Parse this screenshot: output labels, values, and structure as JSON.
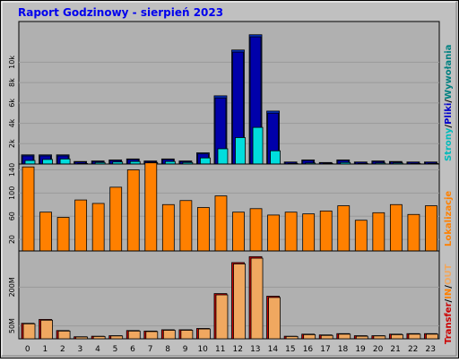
{
  "chart_data": [
    {
      "panel": "hits",
      "type": "bar",
      "title": "Raport Godzinowy -   sierpień 2023",
      "categories": [
        "0",
        "1",
        "2",
        "3",
        "4",
        "5",
        "6",
        "7",
        "8",
        "9",
        "10",
        "11",
        "12",
        "13",
        "14",
        "15",
        "16",
        "17",
        "18",
        "19",
        "20",
        "21",
        "22",
        "23"
      ],
      "ylim": [
        0,
        14000
      ],
      "yticks": [
        "2k",
        "4k",
        "6k",
        "8k",
        "10k"
      ],
      "ytick_values": [
        2000,
        4000,
        6000,
        8000,
        10000
      ],
      "grid": true,
      "series": [
        {
          "name": "Wywołania",
          "color": "#0033cc",
          "values": [
            900,
            900,
            900,
            250,
            300,
            400,
            500,
            300,
            500,
            300,
            1100,
            6700,
            11200,
            12700,
            5200,
            200,
            400,
            150,
            400,
            200,
            300,
            250,
            200,
            200
          ]
        },
        {
          "name": "Pliki",
          "color": "#0000aa",
          "values": [
            800,
            800,
            800,
            200,
            250,
            350,
            450,
            250,
            450,
            250,
            1000,
            6500,
            11000,
            12500,
            5000,
            180,
            350,
            130,
            350,
            180,
            250,
            200,
            180,
            180
          ]
        },
        {
          "name": "Strony",
          "color": "#00dddd",
          "values": [
            350,
            450,
            500,
            50,
            150,
            200,
            250,
            150,
            250,
            150,
            600,
            1500,
            2600,
            3600,
            1300,
            50,
            100,
            50,
            150,
            50,
            100,
            100,
            50,
            50
          ]
        }
      ],
      "legend": {
        "label_strony": "Strony",
        "label_pliki": "Pliki",
        "label_wywolania": "Wywołania",
        "sep1": "/",
        "sep2": "/"
      },
      "legend_placement": "right"
    },
    {
      "panel": "visits",
      "type": "bar",
      "categories": [
        "0",
        "1",
        "2",
        "3",
        "4",
        "5",
        "6",
        "7",
        "8",
        "9",
        "10",
        "11",
        "12",
        "13",
        "14",
        "15",
        "16",
        "17",
        "18",
        "19",
        "20",
        "21",
        "22",
        "23"
      ],
      "ylim": [
        0,
        150
      ],
      "yticks": [
        "20",
        "60",
        "100",
        "140"
      ],
      "ytick_values": [
        20,
        60,
        100,
        140
      ],
      "grid": true,
      "series": [
        {
          "name": "Lokalizacje",
          "color": "#ff8000",
          "values": [
            145,
            67,
            58,
            88,
            82,
            110,
            140,
            152,
            80,
            87,
            75,
            95,
            67,
            73,
            62,
            67,
            64,
            69,
            78,
            53,
            66,
            80,
            63,
            78
          ]
        }
      ],
      "legend": {
        "label": "Lokalizacje"
      },
      "legend_placement": "right"
    },
    {
      "panel": "transfer",
      "type": "bar",
      "ylim": [
        0,
        340
      ],
      "yticks": [
        "50M",
        "200M"
      ],
      "ytick_values": [
        50,
        200
      ],
      "grid": true,
      "categories": [
        "0",
        "1",
        "2",
        "3",
        "4",
        "5",
        "6",
        "7",
        "8",
        "9",
        "10",
        "11",
        "12",
        "13",
        "14",
        "15",
        "16",
        "17",
        "18",
        "19",
        "20",
        "21",
        "22",
        "23"
      ],
      "series": [
        {
          "name": "IN",
          "color": "#cc0000",
          "values": [
            60,
            75,
            32,
            8,
            10,
            12,
            32,
            30,
            35,
            35,
            40,
            175,
            295,
            318,
            165,
            10,
            18,
            15,
            20,
            12,
            12,
            18,
            20,
            20
          ]
        },
        {
          "name": "OUT",
          "color": "#f0a860",
          "values": [
            58,
            72,
            30,
            7,
            9,
            11,
            30,
            28,
            33,
            33,
            38,
            170,
            290,
            312,
            160,
            9,
            16,
            13,
            18,
            10,
            11,
            16,
            18,
            18
          ]
        }
      ],
      "legend": {
        "label_transfer": "Transfer",
        "label_in": "IN",
        "label_out": "OUT",
        "sep1": "/",
        "sep2": "/"
      },
      "legend_placement": "right"
    }
  ],
  "colors": {
    "frame_bg": "#c0c0c0",
    "plot_bg": "#b0b0b0",
    "title_color": "#0000ee",
    "hits_hits": "#0033cc",
    "hits_files": "#0000aa",
    "hits_pages": "#00dddd",
    "visits": "#ff8000",
    "transfer_in": "#cc0000",
    "transfer_out": "#f0a860"
  }
}
